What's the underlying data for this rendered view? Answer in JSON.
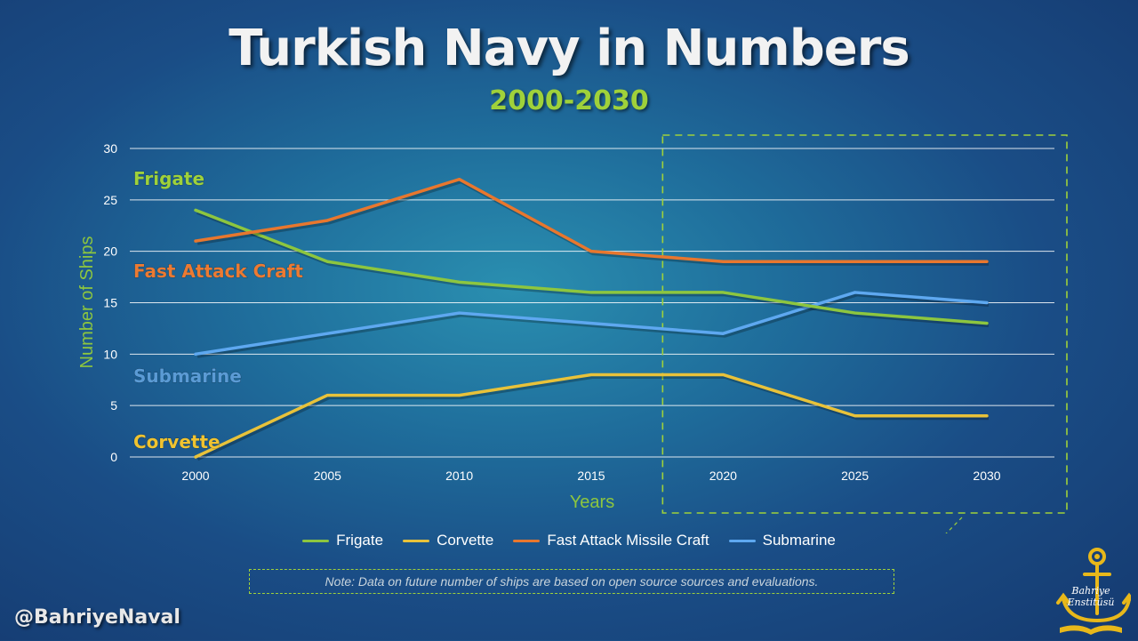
{
  "title": "Turkish Navy in Numbers",
  "subtitle": "2000-2030",
  "chart_data": {
    "type": "line",
    "x": [
      2000,
      2005,
      2010,
      2015,
      2020,
      2025,
      2030
    ],
    "xlabel": "Years",
    "ylabel": "Number of Ships",
    "ylim": [
      0,
      30
    ],
    "yticks": [
      0,
      5,
      10,
      15,
      20,
      25,
      30
    ],
    "grid": true,
    "legend_position": "bottom",
    "series": [
      {
        "name": "Frigate",
        "label": "Frigate",
        "color": "#8dc63f",
        "label_color": "#9fd13a",
        "values": [
          24,
          19,
          17,
          16,
          16,
          14,
          13
        ]
      },
      {
        "name": "Corvette",
        "label": "Corvette",
        "color": "#e8c23a",
        "label_color": "#f0c330",
        "values": [
          0,
          6,
          6,
          8,
          8,
          4,
          4
        ]
      },
      {
        "name": "Fast Attack Missile Craft",
        "label": "Fast Attack Craft",
        "color": "#e8772e",
        "label_color": "#ec7a32",
        "values": [
          21,
          23,
          27,
          20,
          19,
          19,
          19
        ]
      },
      {
        "name": "Submarine",
        "label": "Submarine",
        "color": "#5ea8f0",
        "label_color": "#5b9bd5",
        "values": [
          10,
          12,
          14,
          13,
          12,
          16,
          15
        ]
      }
    ],
    "projection_highlight_from": 2020
  },
  "note": "Note: Data on future number of ships are based on open source sources and evaluations.",
  "handle": "@BahriyeNaval",
  "logo": {
    "line1": "Bahriye",
    "line2": "Enstitüsü",
    "color": "#e8b81a"
  }
}
